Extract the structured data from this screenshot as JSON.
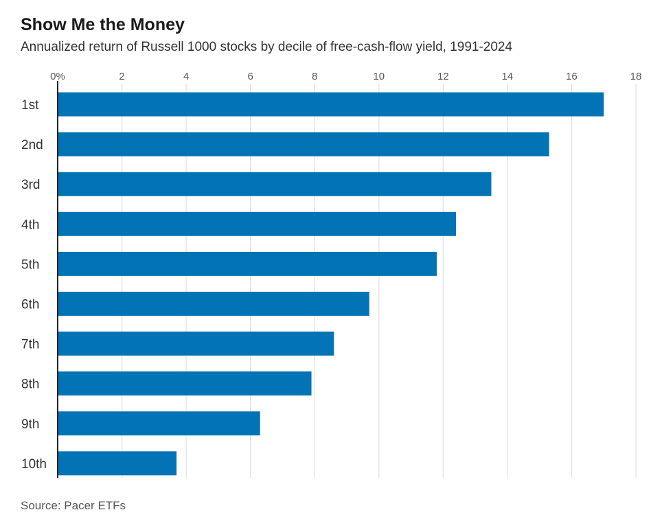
{
  "chart_data": {
    "type": "bar",
    "orientation": "horizontal",
    "title": "Show Me the Money",
    "subtitle": "Annualized return of Russell 1000 stocks by decile of free-cash-flow yield, 1991-2024",
    "source": "Source: Pacer ETFs",
    "categories": [
      "1st",
      "2nd",
      "3rd",
      "4th",
      "5th",
      "6th",
      "7th",
      "8th",
      "9th",
      "10th"
    ],
    "values": [
      17.0,
      15.3,
      13.5,
      12.4,
      11.8,
      9.7,
      8.6,
      7.9,
      6.3,
      3.7
    ],
    "xlim": [
      0,
      18
    ],
    "x_ticks": [
      0,
      2,
      4,
      6,
      8,
      10,
      12,
      14,
      16,
      18
    ],
    "x_tick_labels": [
      "0%",
      "2",
      "4",
      "6",
      "8",
      "10",
      "12",
      "14",
      "16",
      "18"
    ],
    "xlabel": "",
    "ylabel": "",
    "grid": true,
    "axis_position": "top",
    "bar_color": "#0274b6",
    "grid_color": "#e2e2e2",
    "axis_color": "#222222"
  }
}
